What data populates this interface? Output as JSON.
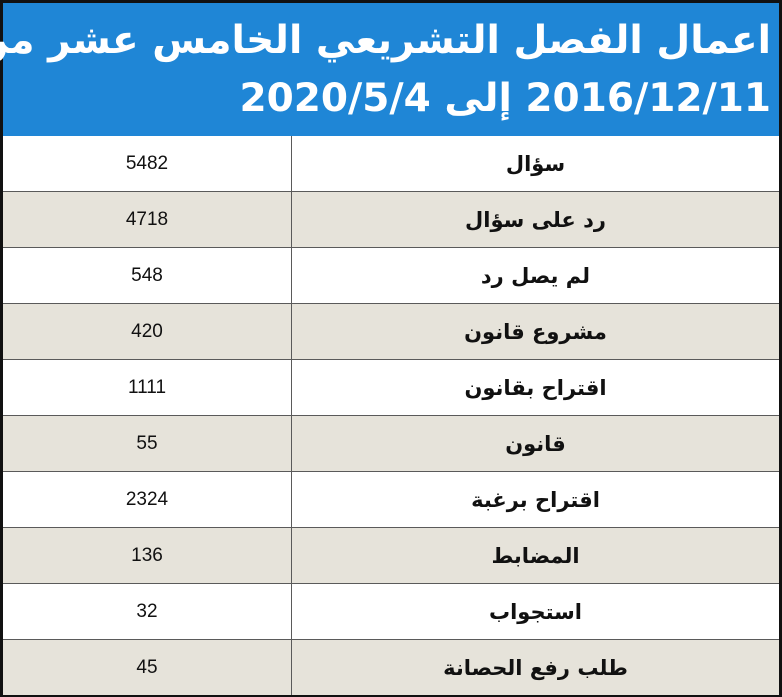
{
  "header": {
    "title_line1": "اعمال الفصل التشريعي الخامس عشر من",
    "title_line2": "2016/12/11 إلى 2020/5/4",
    "background": "#1f86d6",
    "text_color": "#ffffff"
  },
  "table": {
    "alt_row_color": "#e6e3da",
    "rows": [
      {
        "label": "سؤال",
        "value": "5482"
      },
      {
        "label": "رد على سؤال",
        "value": "4718"
      },
      {
        "label": "لم يصل رد",
        "value": "548"
      },
      {
        "label": "مشروع قانون",
        "value": "420"
      },
      {
        "label": "اقتراح بقانون",
        "value": "1111"
      },
      {
        "label": "قانون",
        "value": "55"
      },
      {
        "label": "اقتراح برغبة",
        "value": "2324"
      },
      {
        "label": "المضابط",
        "value": "136"
      },
      {
        "label": "استجواب",
        "value": "32"
      },
      {
        "label": "طلب رفع الحصانة",
        "value": "45"
      }
    ]
  }
}
